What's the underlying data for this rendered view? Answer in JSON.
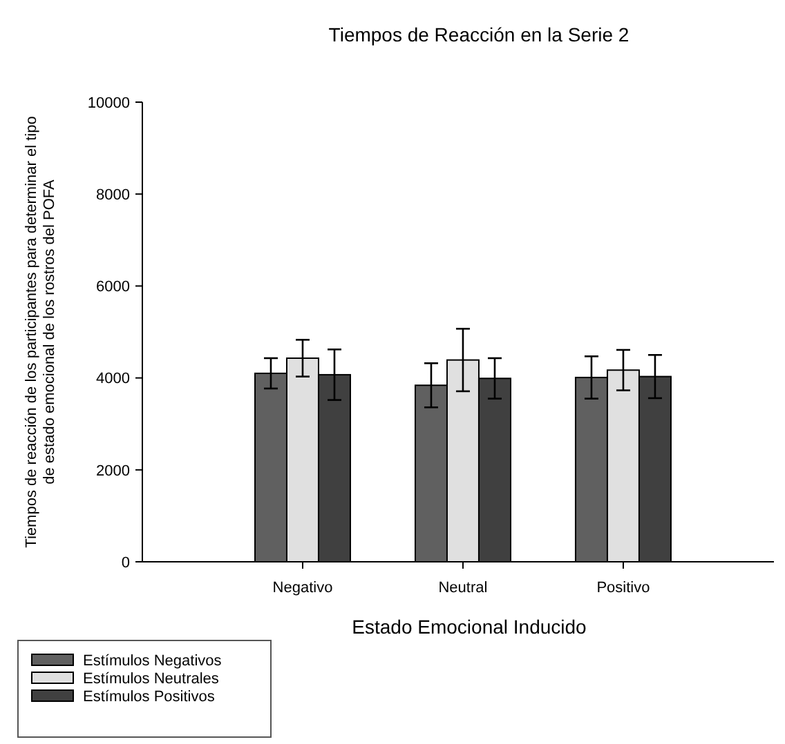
{
  "chart_data": {
    "type": "bar",
    "title": "Tiempos de Reacción en la Serie 2",
    "xlabel": "Estado Emocional Inducido",
    "ylabel": "Tiempos de reacción de los participantes para determinar el tipo de estado emocional de los rostros del POFA",
    "categories": [
      "Negativo",
      "Neutral",
      "Positivo"
    ],
    "series": [
      {
        "name": "Estímulos Negativos",
        "color": "#606060",
        "values": [
          4100,
          3840,
          4010
        ],
        "errors": [
          330,
          480,
          460
        ]
      },
      {
        "name": "Estímulos Neutrales",
        "color": "#e0e0e0",
        "values": [
          4430,
          4390,
          4170
        ],
        "errors": [
          400,
          680,
          440
        ]
      },
      {
        "name": "Estímulos Positivos",
        "color": "#404040",
        "values": [
          4070,
          3990,
          4030
        ],
        "errors": [
          550,
          440,
          470
        ]
      }
    ],
    "ylim": [
      0,
      10000
    ],
    "yticks": [
      0,
      2000,
      4000,
      6000,
      8000,
      10000
    ],
    "grid": false,
    "legend": "bottom left"
  }
}
